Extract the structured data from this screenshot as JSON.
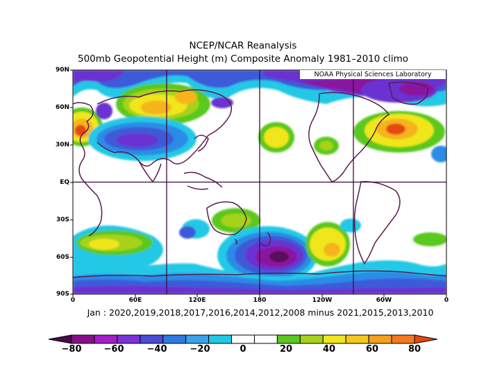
{
  "title_line1": "NCEP/NCAR Reanalysis",
  "title_line2": "500mb Geopotential Height (m) Composite Anomaly 1981–2010 climo",
  "credit": "NOAA Physical Sciences Laboratory",
  "caption": "Jan : 2020,2019,2018,2017,2016,2014,2012,2008 minus 2021,2015,2013,2010",
  "lat_labels": [
    "90N",
    "60N",
    "30N",
    "EQ",
    "30S",
    "60S",
    "90S"
  ],
  "lon_labels": [
    "0",
    "60E",
    "120E",
    "180",
    "120W",
    "60W",
    "0"
  ],
  "colorbar": {
    "labels": [
      "−80",
      "−60",
      "−40",
      "−20",
      "0",
      "20",
      "40",
      "60",
      "80"
    ],
    "colors": [
      "#4a0a4a",
      "#87108a",
      "#a21ec8",
      "#7b32d8",
      "#4b4bd6",
      "#2d7ae0",
      "#3aa2e8",
      "#20c8e8",
      "#ffffff",
      "#ffffff",
      "#5ac81e",
      "#a6d21e",
      "#f0e61e",
      "#f5c81e",
      "#f5a01e",
      "#f5781e",
      "#e64614"
    ]
  },
  "map_data": {
    "colors": {
      "strong_neg": "#5a0a5a",
      "neg_60": "#8a14a0",
      "neg_40": "#6a30d0",
      "neg_20": "#3c5ad8",
      "neg_10": "#2a8ce6",
      "neg_5": "#22c8e6",
      "pos_5": "#5ac81e",
      "pos_20": "#a6d21e",
      "pos_30": "#f0e61e",
      "pos_40": "#f5b41e",
      "pos_60": "#e64614"
    }
  }
}
